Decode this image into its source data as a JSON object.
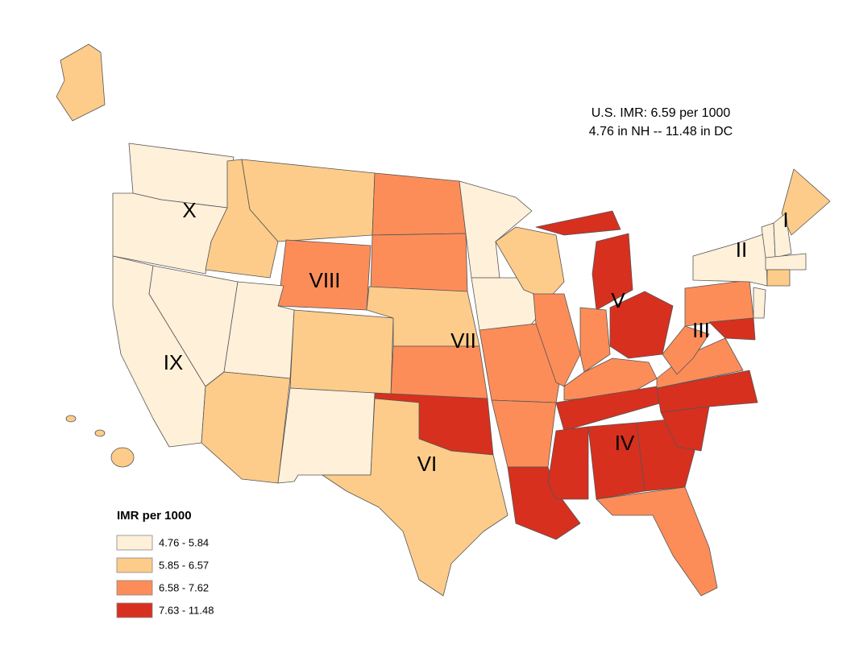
{
  "annotation": {
    "line1": "U.S. IMR: 6.59 per 1000",
    "line2": "4.76 in NH -- 11.48 in DC"
  },
  "legend": {
    "title": "IMR per 1000",
    "items": [
      {
        "label": "4.76 - 5.84",
        "color": "#fef0d9"
      },
      {
        "label": "5.85 - 6.57",
        "color": "#fdcc8a"
      },
      {
        "label": "6.58 - 7.62",
        "color": "#fc8d59"
      },
      {
        "label": "7.63 - 11.48",
        "color": "#d7301f"
      }
    ]
  },
  "regions": [
    "I",
    "II",
    "III",
    "IV",
    "V",
    "VI",
    "VII",
    "VIII",
    "IX",
    "X"
  ]
}
